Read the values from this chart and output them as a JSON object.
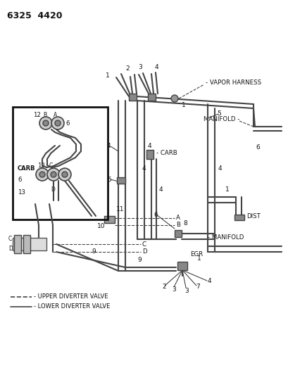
{
  "title": "6325  4420",
  "bg_color": "#ffffff",
  "lc": "#444444",
  "label_color": "#111111",
  "labels": {
    "vapor_harness": "- VAPOR HARNESS",
    "manifold_top": "MANIFOLD -",
    "manifold_bot": "- MANIFOLD",
    "carb": "- CARB",
    "dist": "DIST",
    "egr": "EGR",
    "upper_diverter": "- UPPER DIVERTER VALVE",
    "lower_diverter": "- LOWER DIVERTER VALVE"
  },
  "pipe_lw": 1.5,
  "thin_lw": 0.8
}
